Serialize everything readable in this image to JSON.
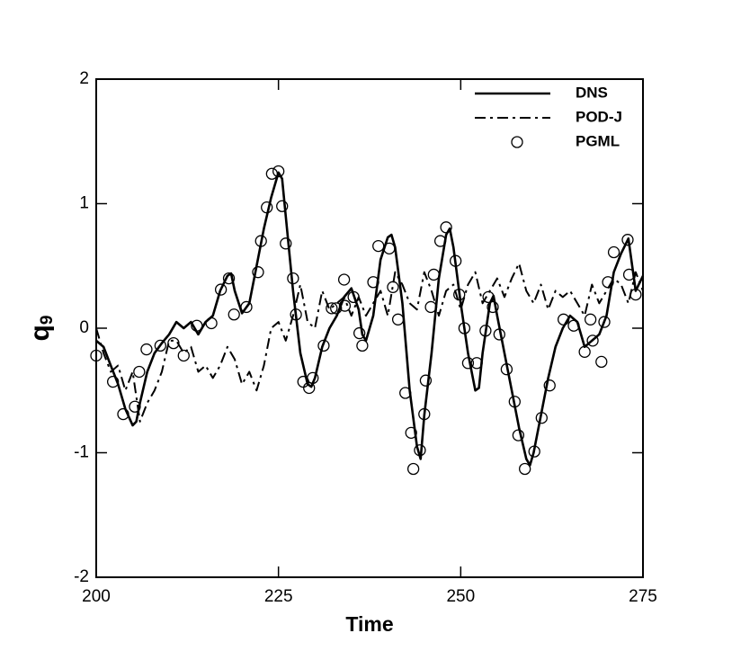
{
  "chart_data": {
    "type": "line",
    "xlabel": "Time",
    "ylabel": "q",
    "ylabel_subscript": "9",
    "xlim": [
      200,
      275
    ],
    "ylim": [
      -2,
      2
    ],
    "xticks": [
      200,
      225,
      250,
      275
    ],
    "yticks": [
      -2,
      -1,
      0,
      1,
      2
    ],
    "legend": "upper right",
    "series": [
      {
        "name": "DNS",
        "color": "#000000",
        "style": "solid",
        "x": [
          200,
          201,
          202,
          203,
          204,
          205,
          205.5,
          206,
          207,
          208,
          209,
          210,
          211,
          212,
          213,
          214,
          215,
          216,
          217,
          218,
          218.5,
          219,
          220,
          221,
          222,
          223,
          224,
          225,
          225.5,
          226,
          227,
          228,
          229,
          229.5,
          230,
          231,
          232,
          233,
          234,
          235,
          236,
          236.5,
          237,
          238,
          239,
          240,
          240.5,
          241,
          242,
          243,
          244,
          244.5,
          245,
          246,
          247,
          248,
          248.5,
          249,
          250,
          251,
          252,
          252.5,
          253,
          254,
          254.5,
          255,
          256,
          257,
          258,
          259,
          259.5,
          260,
          261,
          262,
          263,
          264,
          265,
          266,
          267,
          268,
          269,
          270,
          271,
          272,
          273,
          274,
          275
        ],
        "values": [
          -0.1,
          -0.15,
          -0.3,
          -0.45,
          -0.65,
          -0.78,
          -0.75,
          -0.6,
          -0.35,
          -0.2,
          -0.12,
          -0.05,
          0.05,
          0.0,
          0.05,
          -0.05,
          0.05,
          0.1,
          0.3,
          0.42,
          0.44,
          0.3,
          0.12,
          0.2,
          0.5,
          0.8,
          1.05,
          1.25,
          1.2,
          0.9,
          0.3,
          -0.2,
          -0.45,
          -0.47,
          -0.4,
          -0.15,
          0.0,
          0.1,
          0.25,
          0.32,
          0.15,
          -0.05,
          -0.1,
          0.1,
          0.55,
          0.73,
          0.75,
          0.65,
          0.2,
          -0.5,
          -0.95,
          -1.05,
          -0.7,
          -0.2,
          0.4,
          0.75,
          0.8,
          0.65,
          0.2,
          -0.2,
          -0.5,
          -0.48,
          -0.2,
          0.2,
          0.26,
          0.1,
          -0.2,
          -0.5,
          -0.8,
          -1.05,
          -1.1,
          -1.0,
          -0.7,
          -0.4,
          -0.15,
          0.0,
          0.1,
          0.05,
          -0.15,
          -0.1,
          -0.05,
          0.1,
          0.45,
          0.6,
          0.72,
          0.3,
          0.42
        ]
      },
      {
        "name": "POD-J",
        "color": "#000000",
        "style": "dashdot",
        "x": [
          200,
          201,
          202,
          203,
          204,
          205,
          206,
          207,
          208,
          209,
          210,
          211,
          212,
          213,
          214,
          215,
          216,
          217,
          218,
          219,
          220,
          221,
          222,
          223,
          224,
          225,
          226,
          227,
          228,
          229,
          230,
          231,
          232,
          233,
          234,
          235,
          236,
          237,
          238,
          239,
          240,
          241,
          242,
          243,
          244,
          245,
          246,
          247,
          248,
          249,
          250,
          251,
          252,
          253,
          254,
          255,
          256,
          257,
          258,
          259,
          260,
          261,
          262,
          263,
          264,
          265,
          266,
          267,
          268,
          269,
          270,
          271,
          272,
          273,
          274,
          275
        ],
        "values": [
          0.0,
          -0.2,
          -0.35,
          -0.3,
          -0.5,
          -0.35,
          -0.75,
          -0.6,
          -0.5,
          -0.35,
          -0.1,
          -0.1,
          -0.2,
          -0.15,
          -0.35,
          -0.3,
          -0.4,
          -0.3,
          -0.15,
          -0.25,
          -0.45,
          -0.35,
          -0.5,
          -0.3,
          0.0,
          0.05,
          -0.1,
          0.1,
          0.35,
          0.05,
          0.0,
          0.3,
          0.15,
          0.2,
          0.25,
          0.1,
          0.25,
          0.1,
          0.2,
          0.3,
          0.1,
          0.45,
          0.35,
          0.2,
          0.15,
          0.45,
          0.3,
          0.1,
          0.3,
          0.35,
          0.15,
          0.35,
          0.45,
          0.2,
          0.3,
          0.4,
          0.25,
          0.4,
          0.52,
          0.3,
          0.2,
          0.35,
          0.15,
          0.3,
          0.25,
          0.3,
          0.2,
          0.1,
          0.35,
          0.2,
          0.3,
          0.4,
          0.35,
          0.2,
          0.45,
          0.3
        ]
      },
      {
        "name": "PGML",
        "color": "#000000",
        "style": "markers",
        "x": [
          200,
          202.3,
          203.7,
          205.3,
          205.9,
          206.9,
          208.8,
          210.6,
          212,
          213.8,
          215.8,
          217.1,
          218.2,
          218.9,
          220.6,
          222.2,
          222.6,
          223.4,
          224.1,
          225,
          225.5,
          226,
          227,
          227.4,
          228.4,
          229.2,
          229.7,
          231.2,
          232.3,
          232.9,
          234,
          234.1,
          235.3,
          236.1,
          236.5,
          238,
          238.7,
          240.2,
          240.7,
          241.4,
          242.4,
          243.2,
          243.5,
          244.4,
          245,
          245.2,
          245.9,
          246.3,
          247.2,
          248,
          249.3,
          249.8,
          250.5,
          251,
          252.2,
          253.4,
          253.8,
          254.4,
          255.3,
          256.3,
          257.4,
          257.9,
          258.8,
          260.1,
          261.1,
          262.2,
          264.1,
          265.5,
          267,
          268.1,
          267.8,
          269.3,
          269.7,
          270.2,
          271,
          272.9,
          273.1,
          274
        ],
        "values": [
          -0.22,
          -0.43,
          -0.69,
          -0.63,
          -0.35,
          -0.17,
          -0.14,
          -0.12,
          -0.22,
          0.02,
          0.04,
          0.31,
          0.4,
          0.11,
          0.17,
          0.45,
          0.7,
          0.97,
          1.24,
          1.26,
          0.98,
          0.68,
          0.4,
          0.11,
          -0.43,
          -0.48,
          -0.4,
          -0.14,
          0.16,
          0.16,
          0.39,
          0.18,
          0.25,
          -0.04,
          -0.14,
          0.37,
          0.66,
          0.64,
          0.33,
          0.07,
          -0.52,
          -0.84,
          -1.13,
          -0.98,
          -0.69,
          -0.42,
          0.17,
          0.43,
          0.7,
          0.81,
          0.54,
          0.27,
          0.0,
          -0.28,
          -0.28,
          -0.02,
          0.25,
          0.17,
          -0.05,
          -0.33,
          -0.59,
          -0.86,
          -1.13,
          -0.99,
          -0.72,
          -0.46,
          0.07,
          0.02,
          -0.19,
          -0.1,
          0.07,
          -0.27,
          0.05,
          0.37,
          0.61,
          0.71,
          0.43,
          0.27
        ]
      }
    ]
  }
}
